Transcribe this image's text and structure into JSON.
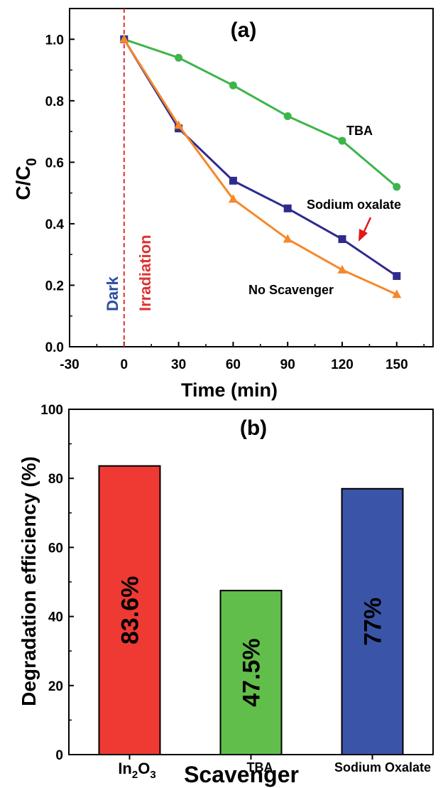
{
  "chart_data": [
    {
      "type": "line",
      "panel_label": "(a)",
      "xlabel": "Time (min)",
      "ylabel": {
        "main": "C/C",
        "sub": "0"
      },
      "xlim": [
        -30,
        170
      ],
      "ylim": [
        0.0,
        1.1
      ],
      "x_ticks": [
        "-30",
        "0",
        "30",
        "60",
        "90",
        "120",
        "150"
      ],
      "y_ticks": [
        "0.0",
        "0.2",
        "0.4",
        "0.6",
        "0.8",
        "1.0"
      ],
      "grid": false,
      "x": [
        0,
        30,
        60,
        90,
        120,
        150
      ],
      "series": [
        {
          "name": "TBA",
          "color": "#3db54a",
          "marker": "circle",
          "values": [
            1.0,
            0.94,
            0.85,
            0.75,
            0.67,
            0.52
          ]
        },
        {
          "name": "Sodium oxalate",
          "color": "#2e2b8c",
          "marker": "square",
          "values": [
            1.0,
            0.71,
            0.54,
            0.45,
            0.35,
            0.23
          ]
        },
        {
          "name": "No Scavenger",
          "color": "#f7872a",
          "marker": "triangle",
          "values": [
            1.0,
            0.72,
            0.48,
            0.35,
            0.25,
            0.17
          ]
        }
      ],
      "divider": {
        "x": 0,
        "color": "#e03030"
      },
      "annotations": {
        "dark": {
          "text": "Dark",
          "color": "#2a4da0"
        },
        "irradiation": {
          "text": "Irradiation",
          "color": "#e03030"
        },
        "arrow_color": "#e01818"
      }
    },
    {
      "type": "bar",
      "panel_label": "(b)",
      "xlabel": "Scavenger",
      "ylabel": "Degradation efficiency (%)",
      "ylim": [
        0,
        100
      ],
      "y_ticks": [
        "0",
        "20",
        "40",
        "60",
        "80",
        "100"
      ],
      "grid": false,
      "categories": [
        {
          "main": "In",
          "sub1": "2",
          "mid": "O",
          "sub2": "3"
        },
        {
          "main": "TBA"
        },
        {
          "main": "Sodium Oxalate"
        }
      ],
      "values": [
        83.6,
        47.5,
        77
      ],
      "value_labels": [
        "83.6%",
        "47.5%",
        "77%"
      ],
      "colors": [
        "#ee3a33",
        "#62be4b",
        "#3a55a8"
      ]
    }
  ]
}
